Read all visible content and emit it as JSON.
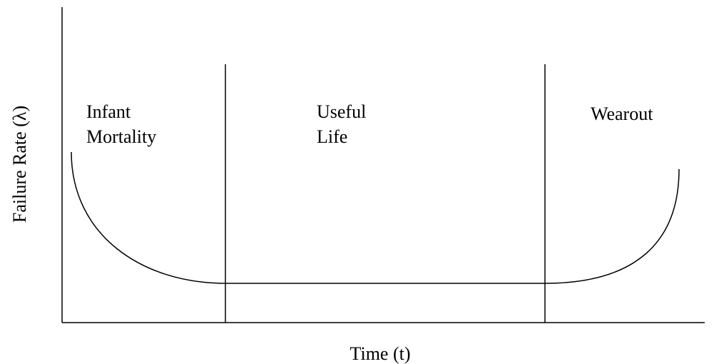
{
  "y_axis_label": "Failure Rate (λ)",
  "x_axis_label": "Time (t)",
  "regions": [
    {
      "label_lines": [
        "Infant",
        "Mortality"
      ]
    },
    {
      "label_lines": [
        "Useful",
        "Life"
      ]
    },
    {
      "label_lines": [
        "Wearout"
      ]
    }
  ]
}
